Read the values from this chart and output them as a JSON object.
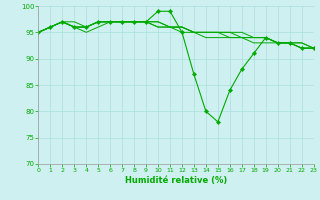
{
  "xlabel": "Humidité relative (%)",
  "xlim": [
    0,
    23
  ],
  "ylim": [
    70,
    100
  ],
  "yticks": [
    70,
    75,
    80,
    85,
    90,
    95,
    100
  ],
  "xticks": [
    0,
    1,
    2,
    3,
    4,
    5,
    6,
    7,
    8,
    9,
    10,
    11,
    12,
    13,
    14,
    15,
    16,
    17,
    18,
    19,
    20,
    21,
    22,
    23
  ],
  "bg_color": "#cff0f0",
  "grid_color": "#aadddd",
  "line_color": "#00aa00",
  "main_series": [
    95,
    96,
    97,
    96,
    96,
    97,
    97,
    97,
    97,
    97,
    99,
    99,
    95,
    87,
    80,
    78,
    84,
    88,
    91,
    94,
    93,
    93,
    92,
    92
  ],
  "flat_series": [
    [
      95,
      96,
      97,
      97,
      96,
      97,
      97,
      97,
      97,
      97,
      97,
      96,
      96,
      95,
      95,
      95,
      95,
      95,
      94,
      94,
      93,
      93,
      93,
      92
    ],
    [
      95,
      96,
      97,
      96,
      95,
      96,
      97,
      97,
      97,
      97,
      97,
      96,
      96,
      95,
      95,
      95,
      94,
      94,
      94,
      94,
      93,
      93,
      93,
      92
    ],
    [
      95,
      96,
      97,
      96,
      96,
      97,
      97,
      97,
      97,
      97,
      96,
      96,
      96,
      95,
      95,
      95,
      95,
      94,
      94,
      94,
      93,
      93,
      92,
      92
    ],
    [
      95,
      96,
      97,
      96,
      96,
      97,
      97,
      97,
      97,
      97,
      96,
      96,
      95,
      95,
      94,
      94,
      94,
      94,
      93,
      93,
      93,
      93,
      92,
      92
    ]
  ]
}
